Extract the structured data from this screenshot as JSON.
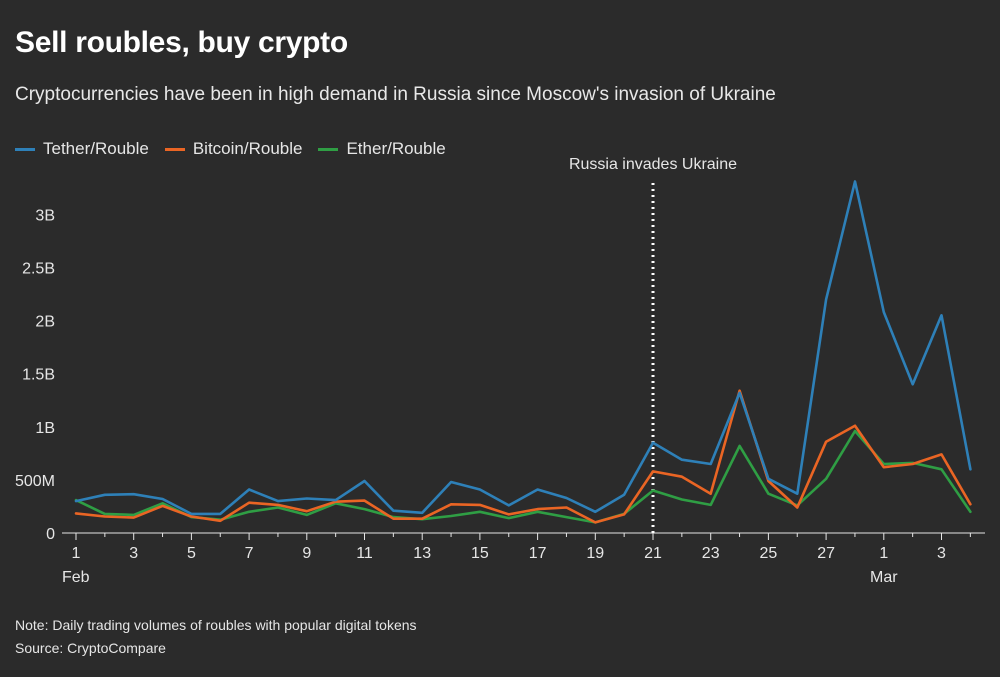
{
  "chart_data": {
    "type": "line",
    "title": "Sell roubles, buy crypto",
    "subtitle": "Cryptocurrencies have been in high demand in Russia since Moscow's invasion of Ukraine",
    "x": [
      "Feb 1",
      "Feb 2",
      "Feb 3",
      "Feb 4",
      "Feb 5",
      "Feb 6",
      "Feb 7",
      "Feb 8",
      "Feb 9",
      "Feb 10",
      "Feb 11",
      "Feb 12",
      "Feb 13",
      "Feb 14",
      "Feb 15",
      "Feb 16",
      "Feb 17",
      "Feb 18",
      "Feb 19",
      "Feb 20",
      "Feb 21",
      "Feb 22",
      "Feb 23",
      "Feb 24",
      "Feb 25",
      "Feb 26",
      "Feb 27",
      "Feb 28",
      "Mar 1",
      "Mar 2",
      "Mar 3",
      "Mar 4"
    ],
    "x_tick_labels": [
      "1",
      "3",
      "5",
      "7",
      "9",
      "11",
      "13",
      "15",
      "17",
      "19",
      "21",
      "23",
      "25",
      "27",
      "1",
      "3"
    ],
    "x_month_labels": [
      "Feb",
      "Mar"
    ],
    "y_tick_labels": [
      "0",
      "500M",
      "1B",
      "1.5B",
      "2B",
      "2.5B",
      "3B"
    ],
    "ylim": [
      0,
      3300
    ],
    "yunit": "millions of roubles",
    "series": [
      {
        "name": "Tether/Rouble",
        "color": "#2e80b8",
        "values": [
          300,
          360,
          365,
          320,
          180,
          180,
          410,
          300,
          325,
          310,
          490,
          210,
          190,
          480,
          410,
          260,
          410,
          330,
          200,
          360,
          850,
          690,
          650,
          1320,
          510,
          370,
          2200,
          3310,
          2080,
          1400,
          2050,
          600
        ]
      },
      {
        "name": "Bitcoin/Rouble",
        "color": "#ea6524",
        "values": [
          185,
          155,
          145,
          255,
          155,
          115,
          285,
          265,
          205,
          295,
          305,
          135,
          135,
          270,
          265,
          175,
          225,
          240,
          100,
          175,
          580,
          530,
          370,
          1340,
          490,
          240,
          860,
          1010,
          620,
          650,
          740,
          270
        ]
      },
      {
        "name": "Ether/Rouble",
        "color": "#2f9e44",
        "values": [
          310,
          180,
          170,
          280,
          150,
          125,
          200,
          240,
          170,
          280,
          225,
          150,
          130,
          160,
          200,
          140,
          200,
          150,
          100,
          180,
          400,
          315,
          265,
          820,
          370,
          260,
          510,
          960,
          650,
          660,
          600,
          200
        ]
      }
    ],
    "annotations": [
      {
        "x": "Feb 21",
        "label": "Russia invades Ukraine",
        "style": "dotted vertical line"
      }
    ],
    "note": "Note: Daily trading volumes of roubles with popular digital tokens",
    "source": "Source: CryptoCompare"
  }
}
